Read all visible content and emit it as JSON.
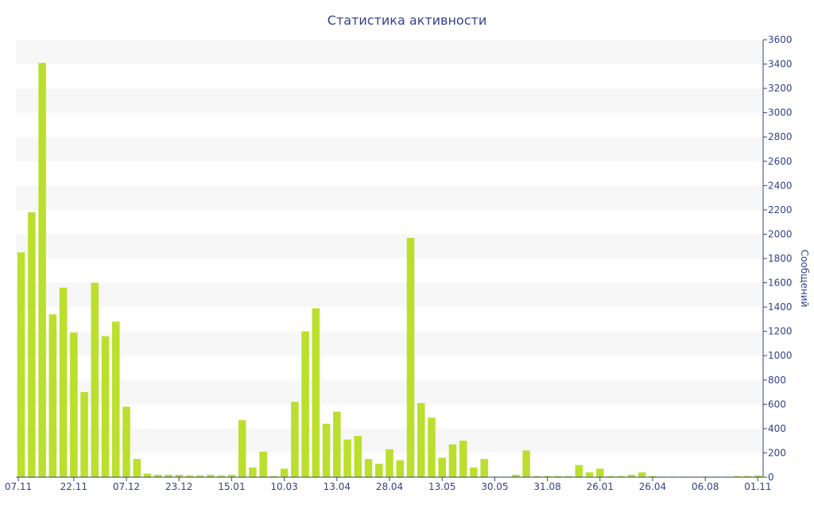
{
  "chart_data": {
    "type": "bar",
    "title": "Статистика активности",
    "ylabel": "Сообщений",
    "xlabel": "",
    "ylim": [
      0,
      3600
    ],
    "y_ticks": [
      0,
      200,
      400,
      600,
      800,
      1000,
      1200,
      1400,
      1600,
      1800,
      2000,
      2200,
      2400,
      2600,
      2800,
      3000,
      3200,
      3400,
      3600
    ],
    "y_axis_side": "right",
    "alternating_bands": true,
    "x_tick_labels": [
      {
        "label": "07.11",
        "index": 0
      },
      {
        "label": "22.11",
        "index": 5
      },
      {
        "label": "07.12",
        "index": 10
      },
      {
        "label": "23.12",
        "index": 15
      },
      {
        "label": "15.01",
        "index": 20
      },
      {
        "label": "10.03",
        "index": 25
      },
      {
        "label": "13.04",
        "index": 30
      },
      {
        "label": "28.04",
        "index": 35
      },
      {
        "label": "13.05",
        "index": 40
      },
      {
        "label": "30.05",
        "index": 45
      },
      {
        "label": "31.08",
        "index": 50
      },
      {
        "label": "26.01",
        "index": 55
      },
      {
        "label": "26.04",
        "index": 60
      },
      {
        "label": "06.08",
        "index": 65
      },
      {
        "label": "01.11",
        "index": 70
      }
    ],
    "values": [
      1850,
      2180,
      3410,
      1340,
      1560,
      1190,
      700,
      1600,
      1160,
      1280,
      580,
      150,
      30,
      20,
      20,
      20,
      15,
      15,
      20,
      15,
      20,
      470,
      80,
      210,
      10,
      70,
      620,
      1200,
      1390,
      440,
      540,
      310,
      340,
      150,
      110,
      230,
      140,
      1970,
      610,
      490,
      160,
      270,
      300,
      80,
      150,
      5,
      5,
      20,
      220,
      10,
      10,
      10,
      10,
      100,
      40,
      70,
      10,
      10,
      20,
      40,
      10,
      5,
      5,
      5,
      5,
      5,
      5,
      5,
      10,
      10,
      15
    ],
    "bar_color": "#bbdf2d",
    "band_color": "#f7f7f7",
    "text_color": "#33428a"
  }
}
